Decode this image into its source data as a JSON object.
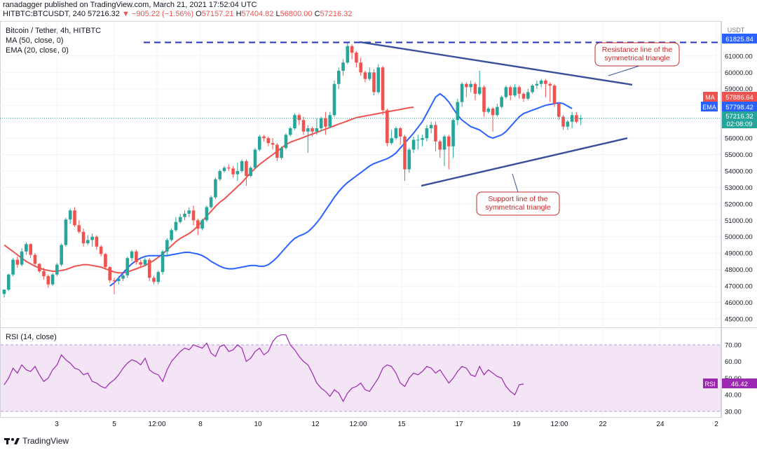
{
  "header": {
    "publisher": "ranadagger published on TradingView.com, March 21, 2021 17:52:04 UTC",
    "symbol": "HITBTC:BTCUSDT, 240",
    "last": "57216.32",
    "change": "▼ −905.22 (−1.56%)",
    "o_label": "O",
    "o": "57157.21",
    "h_label": "H",
    "h": "57404.82",
    "l_label": "L",
    "l": "56800.00",
    "c_label": "C",
    "c": "57216.32"
  },
  "legend": {
    "title": "Bitcoin / Tether, 4h, HITBTC",
    "ma": "MA (50, close, 0)",
    "ema": "EMA (20, close, 0)",
    "rsi": "RSI (14, close)"
  },
  "annotations": {
    "resistance": [
      "Resistance line of the",
      "symmetrical triangle"
    ],
    "support": [
      "Support line of the",
      "symmetrical triangle"
    ]
  },
  "badges": {
    "currency": "USDT",
    "top_level": "61825.84",
    "ma_label": "MA",
    "ma_value": "57886.64",
    "ema_label": "EMA",
    "ema_value": "57798.42",
    "price_value": "57216.32",
    "countdown": "02:08:09",
    "rsi_label": "RSI",
    "rsi_value": "46.42"
  },
  "footer": {
    "brand": "TradingView"
  },
  "colors": {
    "up": "#26a69a",
    "down": "#ef5350",
    "ma": "#ef5350",
    "ema": "#2962ff",
    "trend": "#3a4f9a",
    "rsi": "#9c27b0",
    "rsi_band": "#f3e5f5",
    "annotation_border": "#c62828"
  },
  "chart_data": {
    "type": "candlestick",
    "price_axis": {
      "ticks": [
        45000,
        46000,
        47000,
        48000,
        49000,
        50000,
        51000,
        52000,
        53000,
        54000,
        55000,
        56000,
        57000,
        58000,
        59000,
        60000,
        61000
      ],
      "tick_labels": [
        "45000.00",
        "46000.00",
        "47000.00",
        "48000.00",
        "49000.00",
        "50000.00",
        "51000.00",
        "52000.00",
        "53000.00",
        "54000.00",
        "55000.00",
        "56000.00",
        "57000.00",
        "58000.00",
        "59000.00",
        "60000.00",
        "61000.00"
      ],
      "range": [
        44700,
        62700
      ]
    },
    "rsi_axis": {
      "ticks": [
        30,
        40,
        50,
        60,
        70
      ],
      "tick_labels": [
        "30.00",
        "40.00",
        "50.00",
        "60.00",
        "70.00"
      ],
      "range": [
        27,
        78
      ],
      "band": [
        30,
        70
      ]
    },
    "x_axis": {
      "labels": [
        "3",
        "5",
        "12:00",
        "8",
        "10",
        "12",
        "12:00",
        "15",
        "17",
        "19",
        "12:00",
        "22",
        "24",
        "2"
      ],
      "label_positions": [
        81,
        163,
        224,
        286,
        368,
        450,
        511,
        573,
        655,
        737,
        798,
        860,
        942,
        1022
      ]
    },
    "resistance_level": 61825.84,
    "candles": [
      [
        46520,
        46780,
        46300,
        46800
      ],
      [
        46780,
        47700,
        46700,
        47750
      ],
      [
        47700,
        48600,
        47600,
        48700
      ],
      [
        48600,
        48300,
        48100,
        48800
      ],
      [
        48300,
        49100,
        48200,
        49300
      ],
      [
        49100,
        49550,
        48900,
        49650
      ],
      [
        49550,
        48900,
        48700,
        49600
      ],
      [
        48900,
        48350,
        48200,
        49000
      ],
      [
        48350,
        47900,
        47800,
        48400
      ],
      [
        47900,
        47600,
        47400,
        48100
      ],
      [
        47600,
        47100,
        46900,
        47700
      ],
      [
        47100,
        47700,
        47000,
        47800
      ],
      [
        47700,
        48300,
        47600,
        48400
      ],
      [
        48300,
        49500,
        48200,
        49600
      ],
      [
        49500,
        51050,
        49400,
        51150
      ],
      [
        51050,
        51600,
        50800,
        51700
      ],
      [
        51600,
        50700,
        50600,
        51800
      ],
      [
        50700,
        50300,
        50200,
        51000
      ],
      [
        50300,
        49600,
        49400,
        50500
      ],
      [
        49600,
        49800,
        49500,
        50100
      ],
      [
        49800,
        50000,
        49400,
        50200
      ],
      [
        50000,
        49400,
        49200,
        50100
      ],
      [
        49400,
        48950,
        48800,
        49500
      ],
      [
        48950,
        48150,
        48000,
        49000
      ],
      [
        48150,
        47350,
        47200,
        48200
      ],
      [
        47350,
        47300,
        46500,
        47500
      ],
      [
        47300,
        47450,
        47100,
        47600
      ],
      [
        47450,
        47650,
        47300,
        47800
      ],
      [
        47650,
        48700,
        47500,
        48800
      ],
      [
        48700,
        49100,
        48500,
        49200
      ],
      [
        49100,
        48450,
        48300,
        49200
      ],
      [
        48450,
        48300,
        48100,
        48600
      ],
      [
        48300,
        48600,
        48200,
        48700
      ],
      [
        48600,
        47500,
        47300,
        48700
      ],
      [
        47500,
        47250,
        47100,
        47600
      ],
      [
        47250,
        47850,
        47100,
        47950
      ],
      [
        47850,
        49100,
        47700,
        49200
      ],
      [
        49100,
        49800,
        48900,
        49900
      ],
      [
        49800,
        50400,
        49700,
        50500
      ],
      [
        50400,
        50900,
        50300,
        51200
      ],
      [
        50900,
        51200,
        50800,
        51400
      ],
      [
        51200,
        51400,
        51000,
        51600
      ],
      [
        51400,
        51600,
        51200,
        51800
      ],
      [
        51600,
        51000,
        50700,
        51900
      ],
      [
        51000,
        50500,
        50100,
        51100
      ],
      [
        50500,
        51000,
        50400,
        51100
      ],
      [
        51000,
        51800,
        50900,
        51900
      ],
      [
        51800,
        52400,
        51700,
        52500
      ],
      [
        52400,
        53500,
        52300,
        53600
      ],
      [
        53500,
        54000,
        53400,
        54100
      ],
      [
        54000,
        54200,
        53900,
        54300
      ],
      [
        54200,
        54150,
        54000,
        54400
      ],
      [
        54150,
        53800,
        53600,
        54300
      ],
      [
        53800,
        54000,
        53400,
        54500
      ],
      [
        54000,
        54600,
        53900,
        54700
      ],
      [
        54600,
        53700,
        53100,
        54700
      ],
      [
        53700,
        54200,
        53600,
        54300
      ],
      [
        54200,
        55300,
        54100,
        55400
      ],
      [
        55300,
        56100,
        55200,
        56200
      ],
      [
        56100,
        56000,
        55800,
        56200
      ],
      [
        56000,
        55700,
        55500,
        56100
      ],
      [
        55700,
        55600,
        55300,
        56000
      ],
      [
        55600,
        54800,
        54600,
        55700
      ],
      [
        54800,
        55400,
        54700,
        55500
      ],
      [
        55400,
        56200,
        55300,
        56300
      ],
      [
        56200,
        56600,
        56100,
        56700
      ],
      [
        56600,
        57400,
        56500,
        57500
      ],
      [
        57400,
        57100,
        56800,
        57500
      ],
      [
        57100,
        56400,
        56200,
        57300
      ],
      [
        56400,
        56600,
        55100,
        56800
      ],
      [
        56600,
        56400,
        56100,
        56700
      ],
      [
        56400,
        56600,
        56200,
        57200
      ],
      [
        56600,
        57200,
        56400,
        57300
      ],
      [
        57200,
        56700,
        56200,
        57600
      ],
      [
        56700,
        57400,
        56600,
        57600
      ],
      [
        57400,
        59300,
        57300,
        59500
      ],
      [
        59300,
        60100,
        59000,
        60300
      ],
      [
        60100,
        60600,
        59800,
        60800
      ],
      [
        60600,
        61600,
        60500,
        61800
      ],
      [
        61600,
        61200,
        60800,
        61700
      ],
      [
        61200,
        60600,
        60300,
        61300
      ],
      [
        60600,
        60000,
        59800,
        60900
      ],
      [
        60000,
        59600,
        59400,
        60100
      ],
      [
        59600,
        60000,
        59500,
        60300
      ],
      [
        60000,
        58800,
        58600,
        60200
      ],
      [
        58800,
        60300,
        58700,
        60500
      ],
      [
        60300,
        57700,
        57400,
        60400
      ],
      [
        57700,
        55700,
        55500,
        57800
      ],
      [
        55700,
        56000,
        55600,
        56500
      ],
      [
        56000,
        56600,
        55900,
        56700
      ],
      [
        56600,
        56100,
        55600,
        56700
      ],
      [
        56100,
        54100,
        53400,
        56200
      ],
      [
        54100,
        55300,
        53900,
        55400
      ],
      [
        55300,
        55900,
        55100,
        56100
      ],
      [
        55900,
        55900,
        55300,
        56200
      ],
      [
        55900,
        56000,
        55500,
        56200
      ],
      [
        56000,
        56600,
        55800,
        56800
      ],
      [
        56600,
        56800,
        56300,
        57000
      ],
      [
        56800,
        55800,
        55200,
        57000
      ],
      [
        55800,
        55300,
        54800,
        55900
      ],
      [
        55300,
        56100,
        54300,
        56200
      ],
      [
        56100,
        55500,
        54100,
        56200
      ],
      [
        55500,
        57100,
        54800,
        57200
      ],
      [
        57100,
        58200,
        56800,
        58400
      ],
      [
        58200,
        59300,
        57900,
        59400
      ],
      [
        59300,
        59100,
        58500,
        59400
      ],
      [
        59100,
        59300,
        58800,
        59500
      ],
      [
        59300,
        58700,
        58300,
        59400
      ],
      [
        58700,
        59100,
        58600,
        60100
      ],
      [
        59100,
        57600,
        57300,
        59200
      ],
      [
        57600,
        57800,
        57500,
        57900
      ],
      [
        57800,
        57400,
        56400,
        57900
      ],
      [
        57400,
        57900,
        57300,
        58100
      ],
      [
        57900,
        58500,
        57800,
        58600
      ],
      [
        58500,
        59100,
        58400,
        59200
      ],
      [
        59100,
        58600,
        58300,
        59200
      ],
      [
        58600,
        59100,
        58500,
        59300
      ],
      [
        59100,
        58700,
        58400,
        59200
      ],
      [
        58700,
        58400,
        58200,
        58800
      ],
      [
        58400,
        58800,
        58300,
        59000
      ],
      [
        58800,
        59200,
        58700,
        59300
      ],
      [
        59200,
        59300,
        59000,
        59500
      ],
      [
        59300,
        59500,
        59100,
        59600
      ],
      [
        59500,
        59300,
        58500,
        59600
      ],
      [
        59300,
        59200,
        58200,
        59400
      ],
      [
        59200,
        58100,
        57900,
        59300
      ],
      [
        58100,
        57300,
        57100,
        58200
      ],
      [
        57300,
        56700,
        56500,
        57400
      ],
      [
        56700,
        57000,
        56500,
        57100
      ],
      [
        57000,
        57400,
        56600,
        57600
      ],
      [
        57400,
        57000,
        56900,
        57600
      ],
      [
        57157,
        57216,
        56800,
        57405
      ]
    ],
    "ma50": [
      49500,
      49300,
      49100,
      48900,
      48700,
      48500,
      48350,
      48200,
      48100,
      48000,
      47950,
      47900,
      47900,
      47950,
      48000,
      48100,
      48200,
      48250,
      48300,
      48300,
      48250,
      48200,
      48150,
      48050,
      47950,
      47850,
      47800,
      47800,
      47850,
      47950,
      48050,
      48150,
      48250,
      48400,
      48550,
      48750,
      48950,
      49200,
      49450,
      49700,
      49900,
      50050,
      50200,
      50400,
      50650,
      50950,
      51250,
      51550,
      51850,
      52100,
      52300,
      52550,
      52800,
      53050,
      53300,
      53600,
      53900,
      54150,
      54400,
      54600,
      54800,
      55000,
      55200,
      55400,
      55600,
      55750,
      55850,
      55950,
      56050,
      56150,
      56250,
      56350,
      56450,
      56550,
      56650,
      56750,
      56850,
      56950,
      57050,
      57150,
      57250,
      57300,
      57350,
      57400,
      57450,
      57500,
      57550,
      57600,
      57650,
      57700,
      57750,
      57800,
      57850,
      57886
    ],
    "ma50_start": 0,
    "ema20": [
      47000,
      47200,
      47500,
      47800,
      48100,
      48350,
      48550,
      48700,
      48800,
      48850,
      48850,
      48850,
      48850,
      48850,
      48900,
      48950,
      49000,
      49050,
      49050,
      49000,
      48950,
      48850,
      48700,
      48500,
      48350,
      48200,
      48100,
      48050,
      48050,
      48100,
      48150,
      48200,
      48250,
      48250,
      48200,
      48200,
      48300,
      48500,
      48750,
      49050,
      49350,
      49650,
      49900,
      50050,
      50150,
      50300,
      50550,
      50850,
      51200,
      51600,
      52000,
      52400,
      52750,
      53050,
      53300,
      53500,
      53700,
      53900,
      54100,
      54300,
      54450,
      54550,
      54650,
      54750,
      54900,
      55100,
      55400,
      55700,
      56000,
      56300,
      56650,
      57000,
      57500,
      58000,
      58500,
      58700,
      58500,
      58200,
      57800,
      57400,
      57100,
      56900,
      56700,
      56600,
      56500,
      56300,
      56100,
      56000,
      56100,
      56200,
      56400,
      56700,
      57000,
      57300,
      57500,
      57600,
      57700,
      57800,
      57900,
      58000,
      58050,
      58100,
      58150,
      58100,
      57950,
      57798
    ],
    "ema20_start": 24,
    "rsi": [
      46,
      50,
      56,
      53,
      58,
      55,
      54,
      57,
      52,
      48,
      50,
      55,
      58,
      64,
      61,
      59,
      56,
      55,
      52,
      53,
      48,
      47,
      45,
      44,
      47,
      49,
      52,
      56,
      59,
      61,
      60,
      58,
      62,
      55,
      53,
      52,
      48,
      55,
      60,
      63,
      66,
      68,
      67,
      70,
      69,
      68,
      71,
      65,
      63,
      69,
      70,
      66,
      67,
      70,
      68,
      60,
      62,
      66,
      68,
      64,
      66,
      72,
      75,
      76,
      76,
      70,
      67,
      63,
      60,
      58,
      53,
      47,
      44,
      42,
      39,
      43,
      41,
      36,
      41,
      44,
      45,
      47,
      43,
      42,
      46,
      50,
      56,
      58,
      57,
      53,
      47,
      45,
      50,
      53,
      52,
      54,
      57,
      56,
      53,
      55,
      51,
      47,
      50,
      54,
      57,
      56,
      52,
      51,
      57,
      52,
      55,
      53,
      51,
      50,
      45,
      42,
      40,
      46,
      46.42
    ],
    "trendlines": {
      "resistance": {
        "from": [
          513,
          61850
        ],
        "to": [
          902,
          59250
        ]
      },
      "support": {
        "from": [
          601,
          53100
        ],
        "to": [
          895,
          56000
        ]
      }
    }
  }
}
